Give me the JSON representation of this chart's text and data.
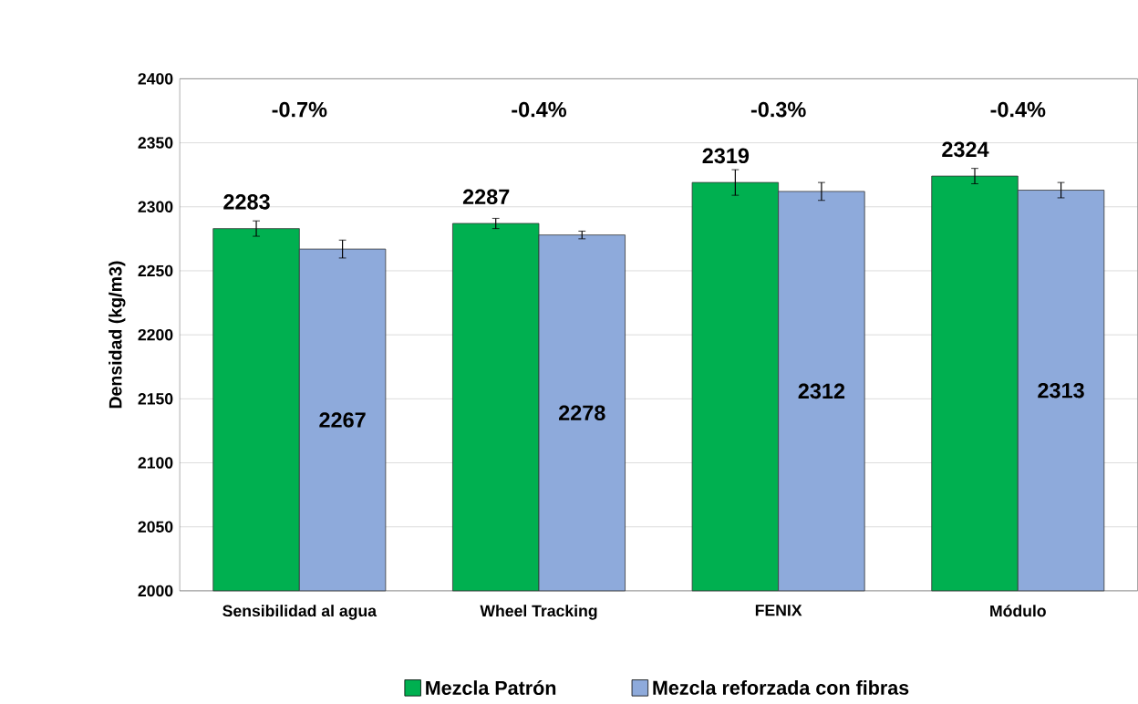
{
  "chart_data": {
    "type": "bar",
    "ylabel": "Densidad (kg/m3)",
    "categories": [
      "Sensibilidad al agua",
      "Wheel Tracking",
      "FENIX",
      "Módulo"
    ],
    "series": [
      {
        "name": "Mezcla Patrón",
        "color": "#00b050",
        "values": [
          2283,
          2287,
          2319,
          2324
        ],
        "errors": [
          6,
          4,
          10,
          6
        ]
      },
      {
        "name": "Mezcla reforzada con fibras",
        "color": "#8eaadb",
        "values": [
          2267,
          2278,
          2312,
          2313
        ],
        "errors": [
          7,
          3,
          7,
          6
        ]
      }
    ],
    "annotations": [
      "-0.7%",
      "-0.4%",
      "-0.3%",
      "-0.4%"
    ],
    "ylim": [
      2000,
      2400
    ],
    "yticks": [
      2000,
      2050,
      2100,
      2150,
      2200,
      2250,
      2300,
      2350,
      2400
    ],
    "grid": "y",
    "legend": "bottom",
    "data_labels": true
  }
}
